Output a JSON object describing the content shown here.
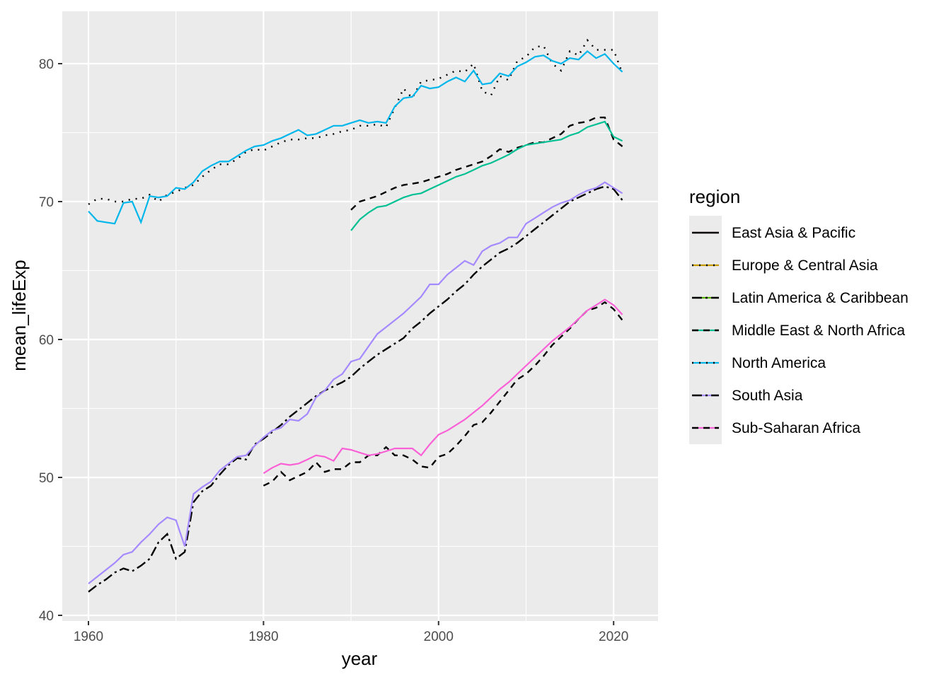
{
  "chart_data": {
    "type": "line",
    "title": "",
    "xlabel": "year",
    "ylabel": "mean_lifeExp",
    "xlim": [
      1958,
      2025
    ],
    "ylim": [
      39.7,
      84.2
    ],
    "x_ticks": [
      1960,
      1980,
      2000,
      2020
    ],
    "y_ticks": [
      40,
      50,
      60,
      70,
      80
    ],
    "grid": true,
    "legend": {
      "title": "region",
      "position": "right"
    },
    "series": [
      {
        "name": "East Asia & Pacific",
        "color": "#F8766D",
        "years": [],
        "values": [],
        "overlay_values": []
      },
      {
        "name": "Europe & Central Asia",
        "color": "#C49A00",
        "years": [],
        "values": [],
        "overlay_values": []
      },
      {
        "name": "Latin America & Caribbean",
        "color": "#53B400",
        "years": [],
        "values": [],
        "overlay_values": []
      },
      {
        "name": "Middle East & North Africa",
        "color": "#00C094",
        "years": [
          1990,
          1991,
          1992,
          1993,
          1994,
          1995,
          1996,
          1997,
          1998,
          1999,
          2000,
          2001,
          2002,
          2003,
          2004,
          2005,
          2006,
          2007,
          2008,
          2009,
          2010,
          2011,
          2012,
          2013,
          2014,
          2015,
          2016,
          2017,
          2018,
          2019,
          2020,
          2021
        ],
        "values": [
          67.9,
          68.7,
          69.2,
          69.6,
          69.7,
          70.0,
          70.3,
          70.5,
          70.6,
          70.9,
          71.2,
          71.5,
          71.8,
          72.0,
          72.3,
          72.6,
          72.8,
          73.1,
          73.4,
          73.8,
          74.1,
          74.2,
          74.3,
          74.4,
          74.5,
          74.8,
          75.0,
          75.4,
          75.6,
          75.8,
          74.7,
          74.4
        ],
        "overlay_values": [
          69.4,
          70.0,
          70.2,
          70.4,
          70.7,
          71.0,
          71.2,
          71.3,
          71.4,
          71.6,
          71.8,
          72.0,
          72.3,
          72.5,
          72.7,
          72.9,
          73.3,
          73.8,
          73.6,
          73.9,
          74.1,
          74.3,
          74.3,
          74.6,
          74.9,
          75.5,
          75.7,
          75.8,
          76.1,
          76.1,
          74.5,
          74.0
        ]
      },
      {
        "name": "North America",
        "color": "#00B6EB",
        "years": [
          1960,
          1961,
          1962,
          1963,
          1964,
          1965,
          1966,
          1967,
          1968,
          1969,
          1970,
          1971,
          1972,
          1973,
          1974,
          1975,
          1976,
          1977,
          1978,
          1979,
          1980,
          1981,
          1982,
          1983,
          1984,
          1985,
          1986,
          1987,
          1988,
          1989,
          1990,
          1991,
          1992,
          1993,
          1994,
          1995,
          1996,
          1997,
          1998,
          1999,
          2000,
          2001,
          2002,
          2003,
          2004,
          2005,
          2006,
          2007,
          2008,
          2009,
          2010,
          2011,
          2012,
          2013,
          2014,
          2015,
          2016,
          2017,
          2018,
          2019,
          2020,
          2021
        ],
        "values": [
          69.3,
          68.6,
          68.5,
          68.4,
          69.9,
          70.0,
          68.5,
          70.4,
          70.3,
          70.4,
          71.0,
          70.9,
          71.4,
          72.2,
          72.6,
          72.9,
          72.9,
          73.3,
          73.7,
          74.0,
          74.1,
          74.4,
          74.6,
          74.9,
          75.2,
          74.8,
          74.9,
          75.2,
          75.5,
          75.5,
          75.7,
          75.9,
          75.7,
          75.8,
          75.7,
          76.9,
          77.5,
          77.6,
          78.4,
          78.2,
          78.3,
          78.7,
          79.0,
          78.7,
          79.5,
          78.5,
          78.6,
          79.3,
          79.1,
          79.8,
          80.1,
          80.5,
          80.6,
          80.2,
          80.0,
          80.4,
          80.3,
          80.9,
          80.4,
          80.7,
          80.0,
          79.4
        ],
        "overlay_values": [
          69.8,
          70.2,
          70.2,
          70.0,
          70.0,
          70.2,
          70.2,
          70.5,
          70.0,
          70.5,
          70.7,
          71.0,
          71.2,
          71.8,
          72.3,
          72.7,
          72.7,
          73.1,
          73.6,
          73.8,
          73.7,
          74.0,
          74.3,
          74.5,
          74.5,
          74.6,
          74.6,
          74.8,
          74.9,
          75.1,
          75.2,
          75.5,
          75.5,
          75.6,
          75.4,
          76.8,
          78.2,
          77.5,
          78.7,
          78.8,
          78.9,
          79.2,
          79.5,
          79.4,
          80.0,
          78.0,
          77.7,
          79.1,
          78.8,
          80.2,
          80.5,
          81.2,
          81.3,
          80.0,
          79.5,
          80.9,
          80.6,
          81.7,
          81.0,
          81.0,
          81.0,
          79.3
        ]
      },
      {
        "name": "South Asia",
        "color": "#A58AFF",
        "years": [
          1960,
          1961,
          1962,
          1963,
          1964,
          1965,
          1966,
          1967,
          1968,
          1969,
          1970,
          1971,
          1972,
          1973,
          1974,
          1975,
          1976,
          1977,
          1978,
          1979,
          1980,
          1981,
          1982,
          1983,
          1984,
          1985,
          1986,
          1987,
          1988,
          1989,
          1990,
          1991,
          1992,
          1993,
          1994,
          1995,
          1996,
          1997,
          1998,
          1999,
          2000,
          2001,
          2002,
          2003,
          2004,
          2005,
          2006,
          2007,
          2008,
          2009,
          2010,
          2011,
          2012,
          2013,
          2014,
          2015,
          2016,
          2017,
          2018,
          2019,
          2020,
          2021
        ],
        "values": [
          42.3,
          42.8,
          43.3,
          43.8,
          44.4,
          44.6,
          45.3,
          45.9,
          46.6,
          47.1,
          46.9,
          45.0,
          48.8,
          49.3,
          49.7,
          50.5,
          51.0,
          51.5,
          51.6,
          52.3,
          52.9,
          53.4,
          53.6,
          54.2,
          54.1,
          54.6,
          55.8,
          56.3,
          57.1,
          57.5,
          58.4,
          58.6,
          59.5,
          60.4,
          60.9,
          61.4,
          61.9,
          62.5,
          63.1,
          64.0,
          64.0,
          64.7,
          65.2,
          65.7,
          65.4,
          66.4,
          66.8,
          67.0,
          67.4,
          67.4,
          68.4,
          68.8,
          69.2,
          69.6,
          69.9,
          70.1,
          70.5,
          70.8,
          71.0,
          71.4,
          71.0,
          70.6
        ],
        "overlay_values": [
          41.7,
          42.2,
          42.6,
          43.1,
          43.4,
          43.2,
          43.6,
          44.1,
          45.3,
          45.9,
          44.1,
          44.6,
          48.2,
          49.0,
          49.4,
          50.2,
          50.9,
          51.4,
          51.3,
          52.4,
          52.8,
          53.3,
          53.8,
          54.4,
          54.9,
          55.4,
          55.9,
          56.3,
          56.6,
          56.9,
          57.3,
          57.9,
          58.4,
          58.9,
          59.3,
          59.7,
          60.1,
          60.8,
          61.3,
          61.9,
          62.4,
          62.9,
          63.5,
          64.0,
          64.7,
          65.3,
          65.8,
          66.3,
          66.6,
          67.0,
          67.5,
          68.0,
          68.5,
          69.0,
          69.5,
          70.0,
          70.3,
          70.6,
          70.9,
          71.1,
          70.9,
          70.1
        ]
      },
      {
        "name": "Sub-Saharan Africa",
        "color": "#FB61D7",
        "years": [
          1980,
          1981,
          1982,
          1983,
          1984,
          1985,
          1986,
          1987,
          1988,
          1989,
          1990,
          1991,
          1992,
          1993,
          1994,
          1995,
          1996,
          1997,
          1998,
          1999,
          2000,
          2001,
          2002,
          2003,
          2004,
          2005,
          2006,
          2007,
          2008,
          2009,
          2010,
          2011,
          2012,
          2013,
          2014,
          2015,
          2016,
          2017,
          2018,
          2019,
          2020,
          2021
        ],
        "values": [
          50.3,
          50.7,
          51.0,
          50.9,
          51.0,
          51.3,
          51.6,
          51.5,
          51.2,
          52.1,
          52.0,
          51.8,
          51.6,
          51.7,
          51.9,
          52.1,
          52.1,
          52.1,
          51.6,
          52.4,
          53.1,
          53.4,
          53.8,
          54.2,
          54.7,
          55.2,
          55.8,
          56.4,
          56.9,
          57.5,
          58.1,
          58.7,
          59.3,
          59.9,
          60.4,
          60.9,
          61.5,
          62.1,
          62.5,
          62.9,
          62.5,
          61.8
        ],
        "overlay_values": [
          49.4,
          49.7,
          50.4,
          49.8,
          50.1,
          50.4,
          51.1,
          50.4,
          50.6,
          50.6,
          51.1,
          51.1,
          51.6,
          51.6,
          52.2,
          51.6,
          51.6,
          51.3,
          50.8,
          50.7,
          51.5,
          51.7,
          52.3,
          53.0,
          53.8,
          54.0,
          54.7,
          55.5,
          56.3,
          57.1,
          57.5,
          58.1,
          58.8,
          59.6,
          60.2,
          60.8,
          61.5,
          62.1,
          62.3,
          62.7,
          62.2,
          61.4
        ]
      }
    ]
  },
  "colors": {
    "panel_background": "#EBEBEB",
    "grid_major": "#FFFFFF",
    "overlay_line": "#000000"
  }
}
